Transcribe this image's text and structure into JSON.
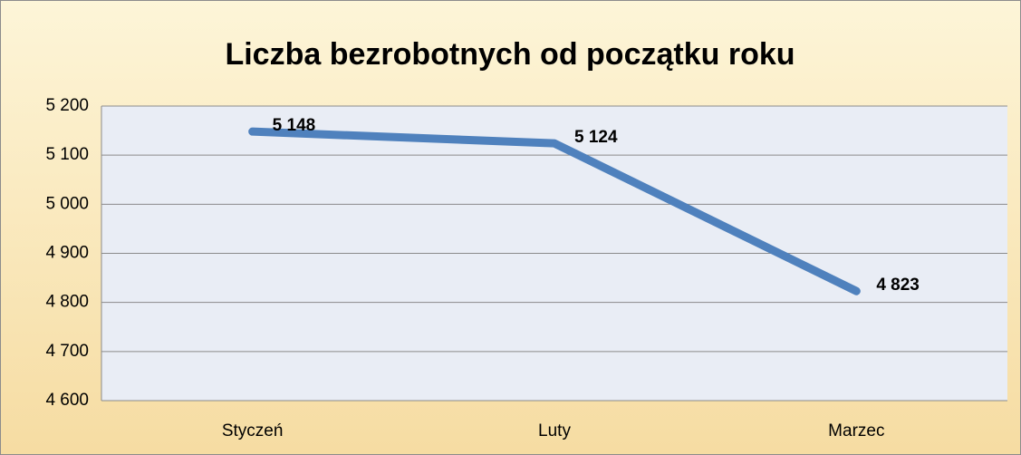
{
  "chart_data": {
    "type": "line",
    "title": "Liczba bezrobotnych od początku roku",
    "categories": [
      "Styczeń",
      "Luty",
      "Marzec"
    ],
    "values": [
      5148,
      5124,
      4823
    ],
    "value_labels": [
      "5 148",
      "5 124",
      "4 823"
    ],
    "color": "#4f81bd",
    "ylim": [
      4600,
      5200
    ],
    "yticks": [
      {
        "value": 4600,
        "label": "4 600"
      },
      {
        "value": 4700,
        "label": "4 700"
      },
      {
        "value": 4800,
        "label": "4 800"
      },
      {
        "value": 4900,
        "label": "4 900"
      },
      {
        "value": 5000,
        "label": "5 000"
      },
      {
        "value": 5100,
        "label": "5 100"
      },
      {
        "value": 5200,
        "label": "5 200"
      }
    ],
    "grid": true
  }
}
